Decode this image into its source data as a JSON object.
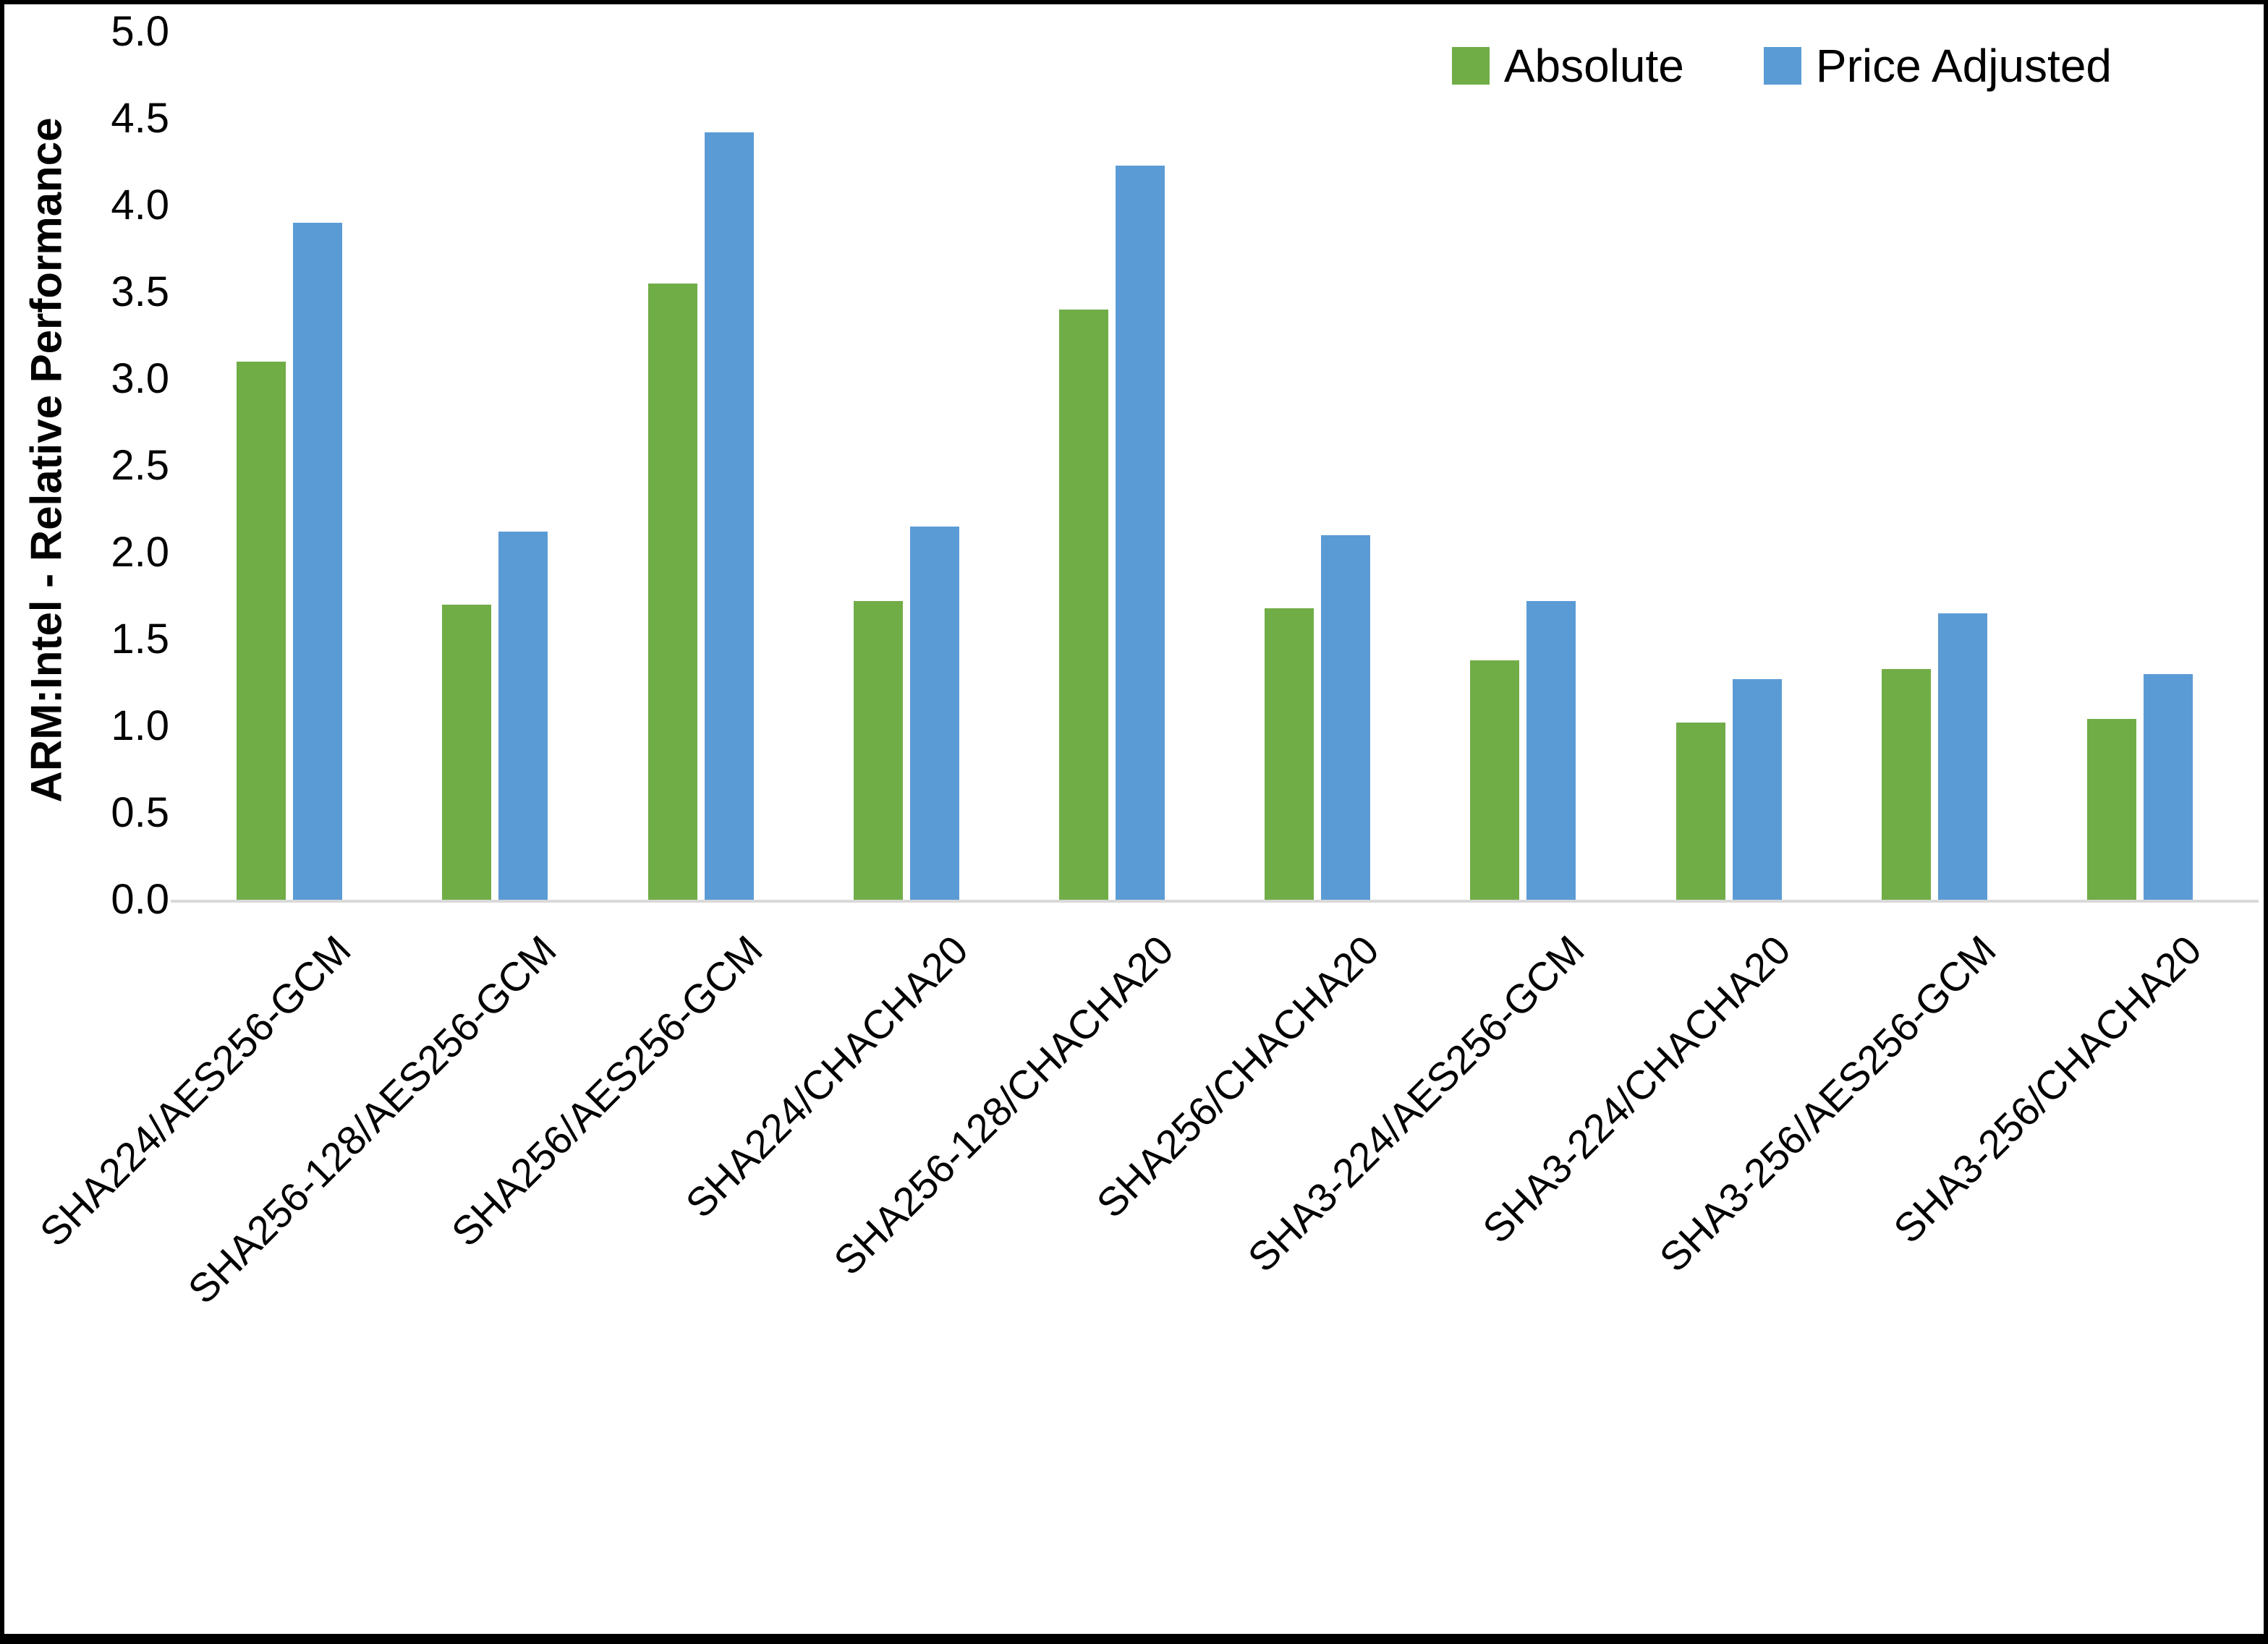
{
  "figure": {
    "background": "#ffffff",
    "border_color": "#000000"
  },
  "chart_data": {
    "type": "bar",
    "title": "",
    "xlabel": "",
    "ylabel": "ARM:Intel - Relative Performance",
    "ylim": [
      0.0,
      5.0
    ],
    "ytick_step": 0.5,
    "yticks": [
      "5.0",
      "4.5",
      "4.0",
      "3.5",
      "3.0",
      "2.5",
      "2.0",
      "1.5",
      "1.0",
      "0.5",
      "0.0"
    ],
    "grid": false,
    "legend_position": "top-right",
    "axis_line_color": "#d9d9d9",
    "categories": [
      "SHA224/AES256-GCM",
      "SHA256-128/AES256-GCM",
      "SHA256/AES256-GCM",
      "SHA224/CHACHA20",
      "SHA256-128/CHACHA20",
      "SHA256/CHACHA20",
      "SHA3-224/AES256-GCM",
      "SHA3-224/CHACHA20",
      "SHA3-256/AES256-GCM",
      "SHA3-256/CHACHA20"
    ],
    "series": [
      {
        "name": "Absolute",
        "color": "#70AD47",
        "values": [
          3.1,
          1.7,
          3.55,
          1.72,
          3.4,
          1.68,
          1.38,
          1.02,
          1.33,
          1.04
        ]
      },
      {
        "name": "Price Adjusted",
        "color": "#5B9BD5",
        "values": [
          3.9,
          2.12,
          4.42,
          2.15,
          4.23,
          2.1,
          1.72,
          1.27,
          1.65,
          1.3
        ]
      }
    ]
  }
}
